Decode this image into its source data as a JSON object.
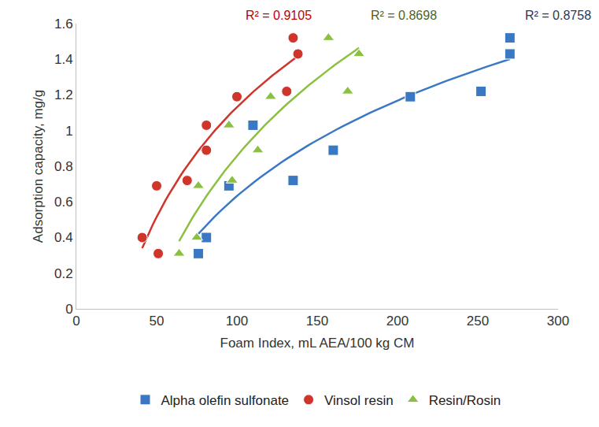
{
  "chart_data": {
    "type": "scatter",
    "x_label": "Foam Index, mL AEA/100 kg CM",
    "y_label": "Adsorption capacity, mg/g",
    "xlim": [
      0,
      300
    ],
    "xticks": [
      0,
      50,
      100,
      150,
      200,
      250,
      300
    ],
    "ylim": [
      0,
      1.6
    ],
    "yticks": [
      0,
      0.2,
      0.4,
      0.6,
      0.8,
      1,
      1.2,
      1.4,
      1.6
    ],
    "grid": false,
    "legend": "bottom",
    "series": [
      {
        "name": "Alpha olefin sulfonate",
        "color": "#3a78c3",
        "marker": "square",
        "x": [
          76,
          81,
          95,
          110,
          135,
          160,
          208,
          252,
          270,
          270
        ],
        "values": [
          0.31,
          0.4,
          0.69,
          1.03,
          0.72,
          0.89,
          1.19,
          1.22,
          1.43,
          1.52
        ]
      },
      {
        "name": "Vinsol resin",
        "color": "#d0352b",
        "marker": "circle",
        "x": [
          41,
          50,
          51,
          69,
          81,
          81,
          100,
          131,
          135,
          138
        ],
        "values": [
          0.4,
          0.69,
          0.31,
          0.72,
          1.03,
          0.89,
          1.19,
          1.22,
          1.52,
          1.43
        ]
      },
      {
        "name": "Resin/Rosin",
        "color": "#8cc043",
        "marker": "triangle-up",
        "x": [
          64,
          75,
          76,
          95,
          97,
          113,
          121,
          157,
          169,
          176
        ],
        "values": [
          0.31,
          0.4,
          0.69,
          1.03,
          0.72,
          0.89,
          1.19,
          1.52,
          1.22,
          1.43
        ]
      }
    ],
    "annotations": [
      {
        "text": "R² = 0.9105",
        "color": "#c00000"
      },
      {
        "text": "R² = 0.8698",
        "color": "#4f6228"
      },
      {
        "text": "R² = 0.8758",
        "color": "#1f3864"
      }
    ]
  }
}
